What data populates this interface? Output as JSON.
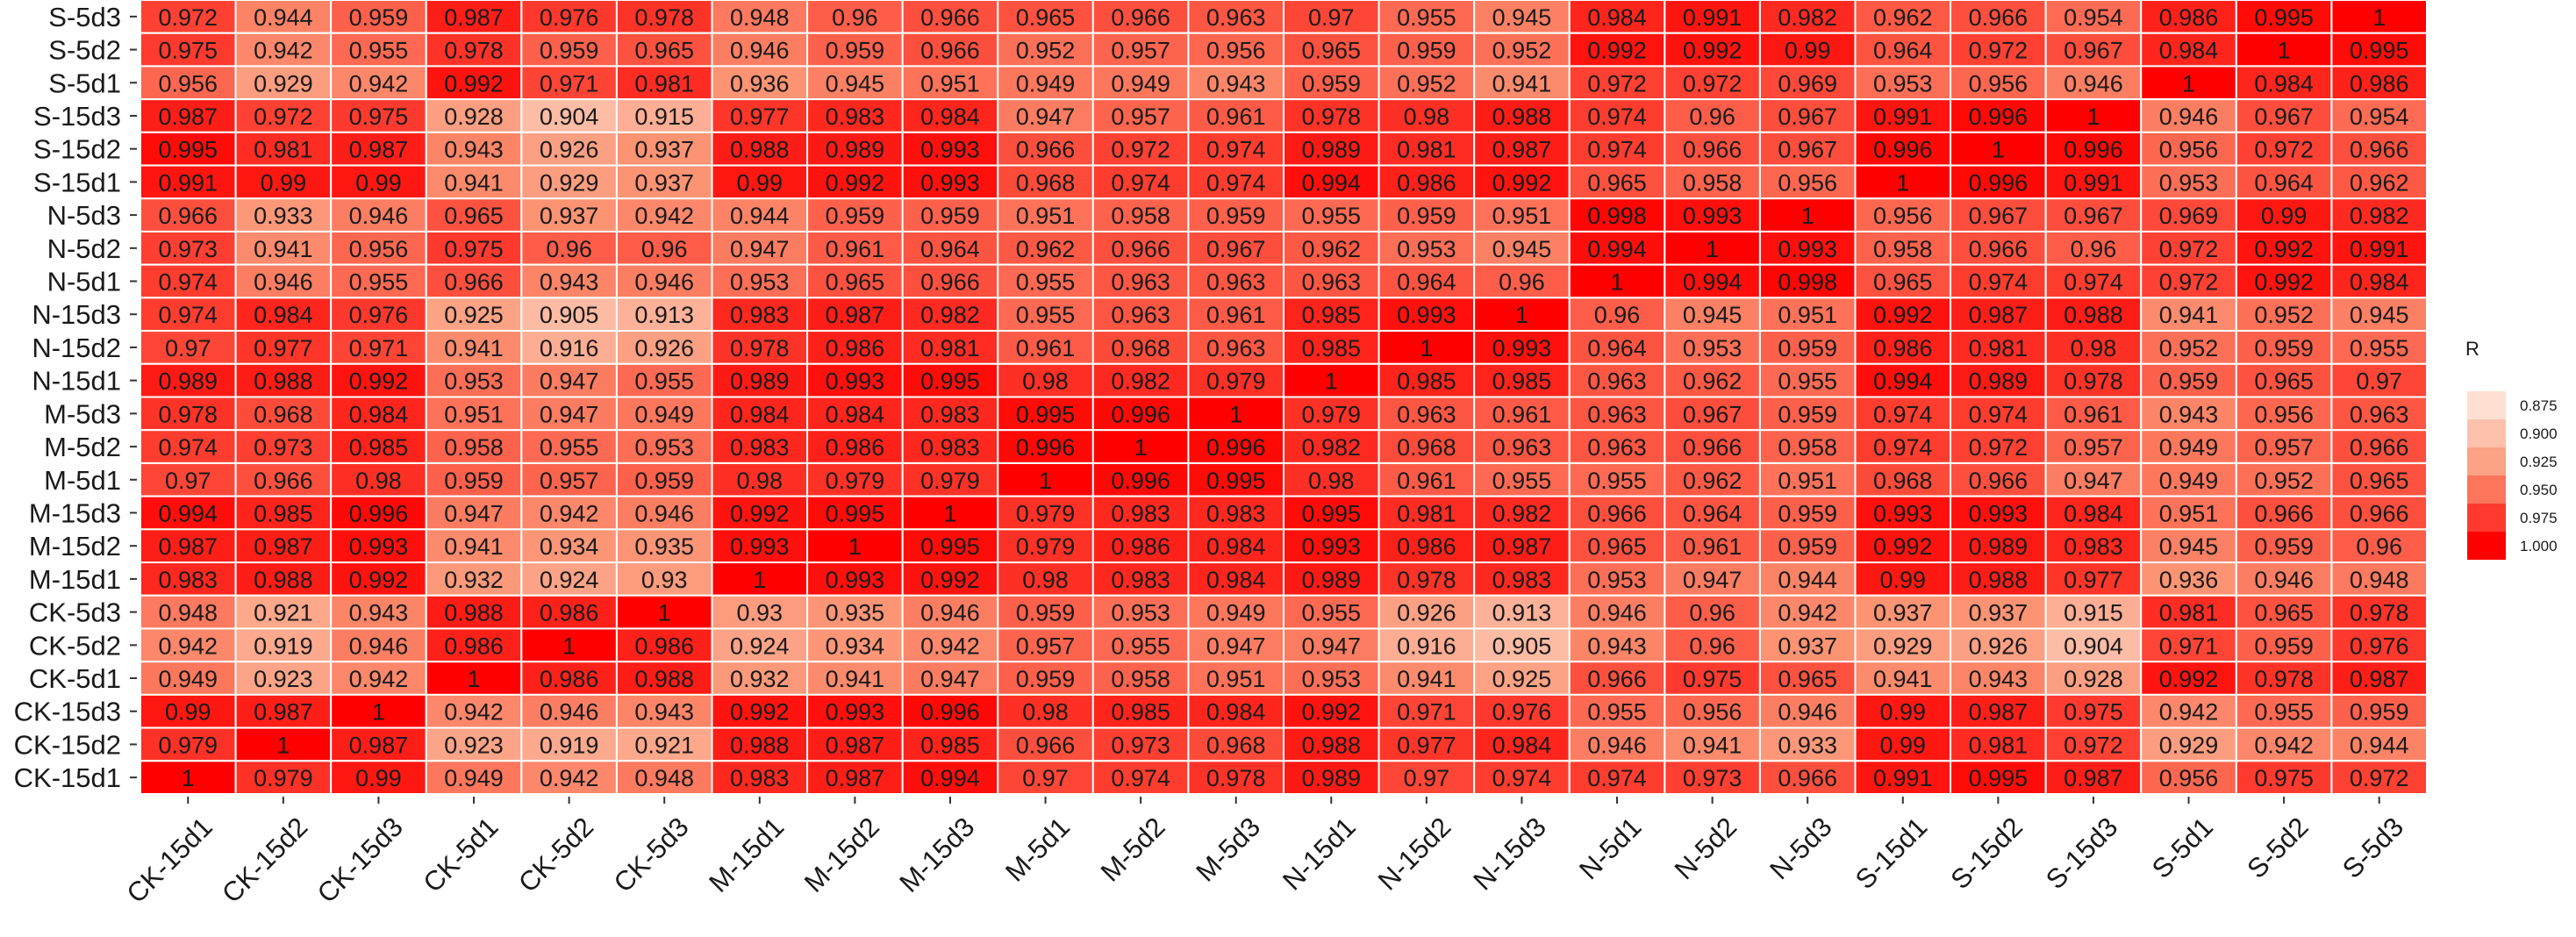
{
  "chart_data": {
    "type": "heatmap",
    "columns": [
      "CK-15d1",
      "CK-15d2",
      "CK-15d3",
      "CK-5d1",
      "CK-5d2",
      "CK-5d3",
      "M-15d1",
      "M-15d2",
      "M-15d3",
      "M-5d1",
      "M-5d2",
      "M-5d3",
      "N-15d1",
      "N-15d2",
      "N-15d3",
      "N-5d1",
      "N-5d2",
      "N-5d3",
      "S-15d1",
      "S-15d2",
      "S-15d3",
      "S-5d1",
      "S-5d2",
      "S-5d3"
    ],
    "rows": [
      "S-5d3",
      "S-5d2",
      "S-5d1",
      "S-15d3",
      "S-15d2",
      "S-15d1",
      "N-5d3",
      "N-5d2",
      "N-5d1",
      "N-15d3",
      "N-15d2",
      "N-15d1",
      "M-5d3",
      "M-5d2",
      "M-5d1",
      "M-15d3",
      "M-15d2",
      "M-15d1",
      "CK-5d3",
      "CK-5d2",
      "CK-5d1",
      "CK-15d3",
      "CK-15d2",
      "CK-15d1"
    ],
    "values": [
      [
        "0.972",
        "0.944",
        "0.959",
        "0.987",
        "0.976",
        "0.978",
        "0.948",
        "0.96",
        "0.966",
        "0.965",
        "0.966",
        "0.963",
        "0.97",
        "0.955",
        "0.945",
        "0.984",
        "0.991",
        "0.982",
        "0.962",
        "0.966",
        "0.954",
        "0.986",
        "0.995",
        "1"
      ],
      [
        "0.975",
        "0.942",
        "0.955",
        "0.978",
        "0.959",
        "0.965",
        "0.946",
        "0.959",
        "0.966",
        "0.952",
        "0.957",
        "0.956",
        "0.965",
        "0.959",
        "0.952",
        "0.992",
        "0.992",
        "0.99",
        "0.964",
        "0.972",
        "0.967",
        "0.984",
        "1",
        "0.995"
      ],
      [
        "0.956",
        "0.929",
        "0.942",
        "0.992",
        "0.971",
        "0.981",
        "0.936",
        "0.945",
        "0.951",
        "0.949",
        "0.949",
        "0.943",
        "0.959",
        "0.952",
        "0.941",
        "0.972",
        "0.972",
        "0.969",
        "0.953",
        "0.956",
        "0.946",
        "1",
        "0.984",
        "0.986"
      ],
      [
        "0.987",
        "0.972",
        "0.975",
        "0.928",
        "0.904",
        "0.915",
        "0.977",
        "0.983",
        "0.984",
        "0.947",
        "0.957",
        "0.961",
        "0.978",
        "0.98",
        "0.988",
        "0.974",
        "0.96",
        "0.967",
        "0.991",
        "0.996",
        "1",
        "0.946",
        "0.967",
        "0.954"
      ],
      [
        "0.995",
        "0.981",
        "0.987",
        "0.943",
        "0.926",
        "0.937",
        "0.988",
        "0.989",
        "0.993",
        "0.966",
        "0.972",
        "0.974",
        "0.989",
        "0.981",
        "0.987",
        "0.974",
        "0.966",
        "0.967",
        "0.996",
        "1",
        "0.996",
        "0.956",
        "0.972",
        "0.966"
      ],
      [
        "0.991",
        "0.99",
        "0.99",
        "0.941",
        "0.929",
        "0.937",
        "0.99",
        "0.992",
        "0.993",
        "0.968",
        "0.974",
        "0.974",
        "0.994",
        "0.986",
        "0.992",
        "0.965",
        "0.958",
        "0.956",
        "1",
        "0.996",
        "0.991",
        "0.953",
        "0.964",
        "0.962"
      ],
      [
        "0.966",
        "0.933",
        "0.946",
        "0.965",
        "0.937",
        "0.942",
        "0.944",
        "0.959",
        "0.959",
        "0.951",
        "0.958",
        "0.959",
        "0.955",
        "0.959",
        "0.951",
        "0.998",
        "0.993",
        "1",
        "0.956",
        "0.967",
        "0.967",
        "0.969",
        "0.99",
        "0.982"
      ],
      [
        "0.973",
        "0.941",
        "0.956",
        "0.975",
        "0.96",
        "0.96",
        "0.947",
        "0.961",
        "0.964",
        "0.962",
        "0.966",
        "0.967",
        "0.962",
        "0.953",
        "0.945",
        "0.994",
        "1",
        "0.993",
        "0.958",
        "0.966",
        "0.96",
        "0.972",
        "0.992",
        "0.991"
      ],
      [
        "0.974",
        "0.946",
        "0.955",
        "0.966",
        "0.943",
        "0.946",
        "0.953",
        "0.965",
        "0.966",
        "0.955",
        "0.963",
        "0.963",
        "0.963",
        "0.964",
        "0.96",
        "1",
        "0.994",
        "0.998",
        "0.965",
        "0.974",
        "0.974",
        "0.972",
        "0.992",
        "0.984"
      ],
      [
        "0.974",
        "0.984",
        "0.976",
        "0.925",
        "0.905",
        "0.913",
        "0.983",
        "0.987",
        "0.982",
        "0.955",
        "0.963",
        "0.961",
        "0.985",
        "0.993",
        "1",
        "0.96",
        "0.945",
        "0.951",
        "0.992",
        "0.987",
        "0.988",
        "0.941",
        "0.952",
        "0.945"
      ],
      [
        "0.97",
        "0.977",
        "0.971",
        "0.941",
        "0.916",
        "0.926",
        "0.978",
        "0.986",
        "0.981",
        "0.961",
        "0.968",
        "0.963",
        "0.985",
        "1",
        "0.993",
        "0.964",
        "0.953",
        "0.959",
        "0.986",
        "0.981",
        "0.98",
        "0.952",
        "0.959",
        "0.955"
      ],
      [
        "0.989",
        "0.988",
        "0.992",
        "0.953",
        "0.947",
        "0.955",
        "0.989",
        "0.993",
        "0.995",
        "0.98",
        "0.982",
        "0.979",
        "1",
        "0.985",
        "0.985",
        "0.963",
        "0.962",
        "0.955",
        "0.994",
        "0.989",
        "0.978",
        "0.959",
        "0.965",
        "0.97"
      ],
      [
        "0.978",
        "0.968",
        "0.984",
        "0.951",
        "0.947",
        "0.949",
        "0.984",
        "0.984",
        "0.983",
        "0.995",
        "0.996",
        "1",
        "0.979",
        "0.963",
        "0.961",
        "0.963",
        "0.967",
        "0.959",
        "0.974",
        "0.974",
        "0.961",
        "0.943",
        "0.956",
        "0.963"
      ],
      [
        "0.974",
        "0.973",
        "0.985",
        "0.958",
        "0.955",
        "0.953",
        "0.983",
        "0.986",
        "0.983",
        "0.996",
        "1",
        "0.996",
        "0.982",
        "0.968",
        "0.963",
        "0.963",
        "0.966",
        "0.958",
        "0.974",
        "0.972",
        "0.957",
        "0.949",
        "0.957",
        "0.966"
      ],
      [
        "0.97",
        "0.966",
        "0.98",
        "0.959",
        "0.957",
        "0.959",
        "0.98",
        "0.979",
        "0.979",
        "1",
        "0.996",
        "0.995",
        "0.98",
        "0.961",
        "0.955",
        "0.955",
        "0.962",
        "0.951",
        "0.968",
        "0.966",
        "0.947",
        "0.949",
        "0.952",
        "0.965"
      ],
      [
        "0.994",
        "0.985",
        "0.996",
        "0.947",
        "0.942",
        "0.946",
        "0.992",
        "0.995",
        "1",
        "0.979",
        "0.983",
        "0.983",
        "0.995",
        "0.981",
        "0.982",
        "0.966",
        "0.964",
        "0.959",
        "0.993",
        "0.993",
        "0.984",
        "0.951",
        "0.966",
        "0.966"
      ],
      [
        "0.987",
        "0.987",
        "0.993",
        "0.941",
        "0.934",
        "0.935",
        "0.993",
        "1",
        "0.995",
        "0.979",
        "0.986",
        "0.984",
        "0.993",
        "0.986",
        "0.987",
        "0.965",
        "0.961",
        "0.959",
        "0.992",
        "0.989",
        "0.983",
        "0.945",
        "0.959",
        "0.96"
      ],
      [
        "0.983",
        "0.988",
        "0.992",
        "0.932",
        "0.924",
        "0.93",
        "1",
        "0.993",
        "0.992",
        "0.98",
        "0.983",
        "0.984",
        "0.989",
        "0.978",
        "0.983",
        "0.953",
        "0.947",
        "0.944",
        "0.99",
        "0.988",
        "0.977",
        "0.936",
        "0.946",
        "0.948"
      ],
      [
        "0.948",
        "0.921",
        "0.943",
        "0.988",
        "0.986",
        "1",
        "0.93",
        "0.935",
        "0.946",
        "0.959",
        "0.953",
        "0.949",
        "0.955",
        "0.926",
        "0.913",
        "0.946",
        "0.96",
        "0.942",
        "0.937",
        "0.937",
        "0.915",
        "0.981",
        "0.965",
        "0.978"
      ],
      [
        "0.942",
        "0.919",
        "0.946",
        "0.986",
        "1",
        "0.986",
        "0.924",
        "0.934",
        "0.942",
        "0.957",
        "0.955",
        "0.947",
        "0.947",
        "0.916",
        "0.905",
        "0.943",
        "0.96",
        "0.937",
        "0.929",
        "0.926",
        "0.904",
        "0.971",
        "0.959",
        "0.976"
      ],
      [
        "0.949",
        "0.923",
        "0.942",
        "1",
        "0.986",
        "0.988",
        "0.932",
        "0.941",
        "0.947",
        "0.959",
        "0.958",
        "0.951",
        "0.953",
        "0.941",
        "0.925",
        "0.966",
        "0.975",
        "0.965",
        "0.941",
        "0.943",
        "0.928",
        "0.992",
        "0.978",
        "0.987"
      ],
      [
        "0.99",
        "0.987",
        "1",
        "0.942",
        "0.946",
        "0.943",
        "0.992",
        "0.993",
        "0.996",
        "0.98",
        "0.985",
        "0.984",
        "0.992",
        "0.971",
        "0.976",
        "0.955",
        "0.956",
        "0.946",
        "0.99",
        "0.987",
        "0.975",
        "0.942",
        "0.955",
        "0.959"
      ],
      [
        "0.979",
        "1",
        "0.987",
        "0.923",
        "0.919",
        "0.921",
        "0.988",
        "0.987",
        "0.985",
        "0.966",
        "0.973",
        "0.968",
        "0.988",
        "0.977",
        "0.984",
        "0.946",
        "0.941",
        "0.933",
        "0.99",
        "0.981",
        "0.972",
        "0.929",
        "0.942",
        "0.944"
      ],
      [
        "1",
        "0.979",
        "0.99",
        "0.949",
        "0.942",
        "0.948",
        "0.983",
        "0.987",
        "0.994",
        "0.97",
        "0.974",
        "0.978",
        "0.989",
        "0.97",
        "0.974",
        "0.974",
        "0.973",
        "0.966",
        "0.991",
        "0.995",
        "0.987",
        "0.956",
        "0.975",
        "0.972"
      ]
    ],
    "color_scale": {
      "domain": [
        0.875,
        1.0
      ],
      "low_color": "#fee0d2",
      "mid_color": "#fc9272",
      "high_color": "#ff0000"
    },
    "legend": {
      "title": "R",
      "ticks": [
        "0.875",
        "0.900",
        "0.925",
        "0.950",
        "0.975",
        "1.000"
      ],
      "placement": "right"
    },
    "grid_color": "#ffffff",
    "title": "",
    "xlabel": "",
    "ylabel": ""
  }
}
